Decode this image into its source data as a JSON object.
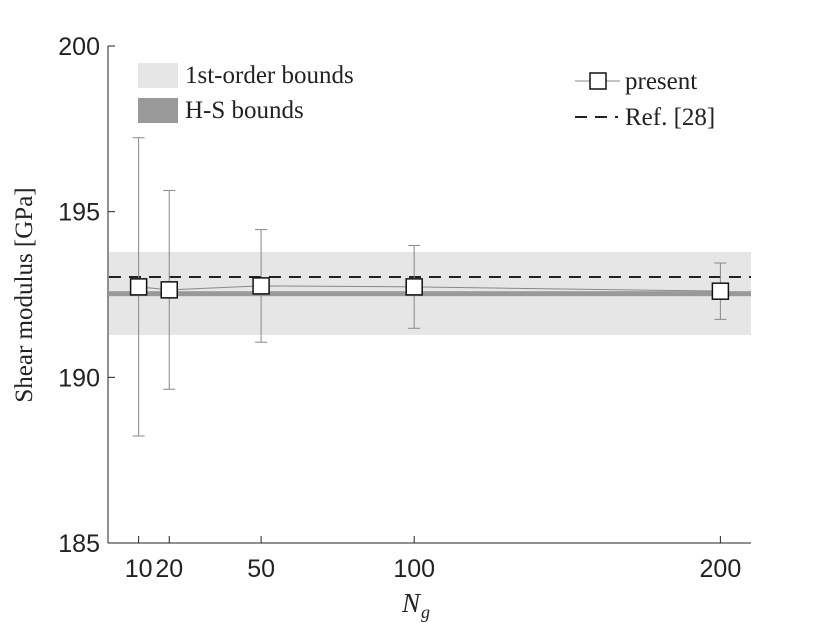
{
  "chart_data": {
    "type": "errorbar",
    "ylabel": "Shear modulus [GPa]",
    "xlabel": "N",
    "xlabel_sub": "g",
    "x": [
      10,
      20,
      50,
      100,
      200
    ],
    "series": [
      {
        "name": "present",
        "color": "#888888",
        "values": [
          192.73,
          192.64,
          192.76,
          192.73,
          192.6
        ],
        "errors": [
          4.5,
          3.0,
          1.7,
          1.25,
          0.85
        ]
      }
    ],
    "bands": [
      {
        "name": "1st-order bounds",
        "color": "#e6e6e6",
        "range": [
          191.28,
          193.78
        ]
      },
      {
        "name": "H-S bounds",
        "color": "#999999",
        "range": [
          192.45,
          192.6
        ]
      }
    ],
    "reference": {
      "name": "Ref. [28]",
      "value": 193.03
    },
    "xlim": [
      0,
      210
    ],
    "ylim": [
      185,
      200
    ],
    "xticks": [
      10,
      20,
      50,
      100,
      200
    ],
    "yticks": [
      185,
      190,
      195,
      200
    ]
  }
}
